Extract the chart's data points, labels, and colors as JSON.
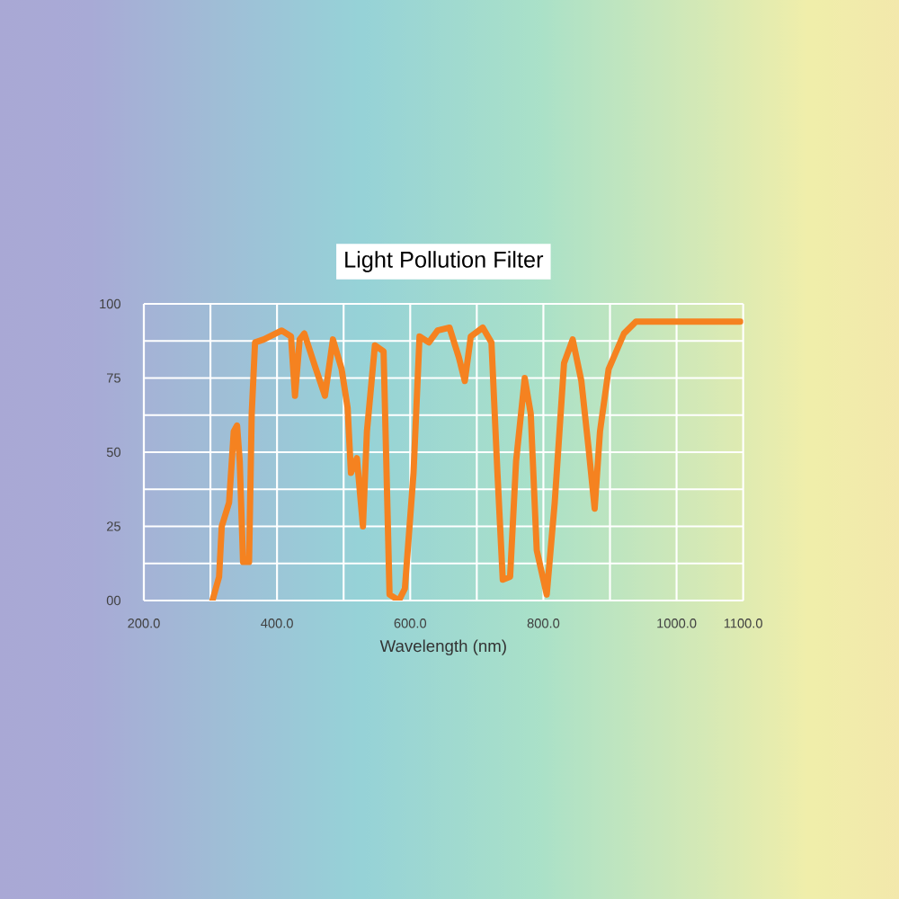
{
  "chart_data": {
    "type": "line",
    "title": "Light Pollution Filter",
    "xlabel": "Wavelength (nm)",
    "x": [
      303,
      313,
      317,
      328,
      335,
      340,
      344,
      349,
      358,
      362,
      367,
      380,
      407,
      421,
      427,
      434,
      441,
      457,
      472,
      484,
      497,
      506,
      511,
      520,
      529,
      535,
      547,
      560,
      569,
      583,
      592,
      605,
      614,
      628,
      641,
      659,
      673,
      682,
      691,
      709,
      722,
      731,
      739,
      750,
      759,
      772,
      781,
      790,
      805,
      817,
      831,
      844,
      857,
      868,
      877,
      885,
      898,
      921,
      939,
      975,
      1096
    ],
    "values": [
      0,
      8,
      25,
      33,
      57,
      59,
      47,
      13,
      13,
      63,
      87,
      88,
      91,
      89,
      69,
      88,
      90,
      79,
      69,
      88,
      78,
      65,
      43,
      48,
      25,
      57,
      86,
      84,
      2,
      0,
      4,
      43,
      89,
      87,
      91,
      92,
      82,
      74,
      89,
      92,
      87,
      43,
      7,
      8,
      47,
      75,
      63,
      17,
      2,
      33,
      80,
      88,
      74,
      51,
      31,
      57,
      78,
      90,
      94,
      94,
      94
    ],
    "color": "#f58220",
    "xlim": [
      200,
      1100
    ],
    "xticks": [
      {
        "value": 200,
        "label": "200.0"
      },
      {
        "value": 300,
        "label": null
      },
      {
        "value": 400,
        "label": "400.0"
      },
      {
        "value": 500,
        "label": null
      },
      {
        "value": 600,
        "label": "600.0"
      },
      {
        "value": 700,
        "label": null
      },
      {
        "value": 800,
        "label": "800.0"
      },
      {
        "value": 900,
        "label": null
      },
      {
        "value": 1000,
        "label": "1000.0"
      },
      {
        "value": 1100,
        "label": "1100.0"
      }
    ],
    "ylim": [
      0,
      100
    ],
    "yticks": [
      {
        "value": 0,
        "label": "00"
      },
      25,
      50,
      75,
      100
    ],
    "grid": true,
    "line_style": "solid",
    "marker": "none"
  }
}
